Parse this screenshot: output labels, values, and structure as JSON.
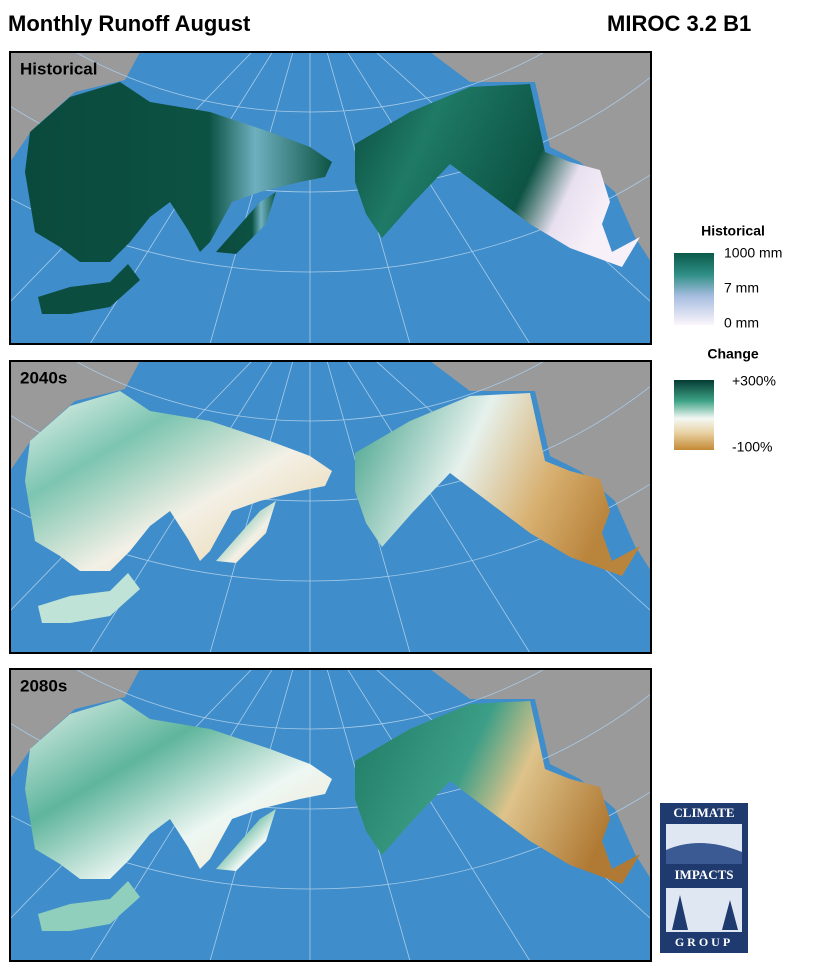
{
  "header": {
    "title": "Monthly Runoff August",
    "model": "MIROC 3.2 B1"
  },
  "panels": [
    {
      "label": "Historical"
    },
    {
      "label": "2040s"
    },
    {
      "label": "2080s"
    }
  ],
  "legends": {
    "historical": {
      "title": "Historical",
      "labels": [
        "1000 mm",
        "7 mm",
        "0 mm"
      ]
    },
    "change": {
      "title": "Change",
      "labels": [
        "+300%",
        "-100%"
      ]
    }
  },
  "logo": {
    "lines": [
      "CLIMATE",
      "IMPACTS",
      "GROUP"
    ]
  }
}
